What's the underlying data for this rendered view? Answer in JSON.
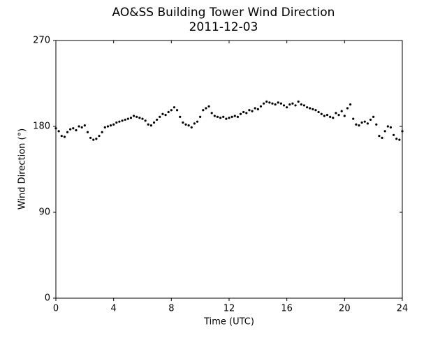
{
  "chart_data": {
    "type": "scatter",
    "title": "AO&SS Building Tower Wind Direction",
    "subtitle": "2011-12-03",
    "x_label": "Time (UTC)",
    "y_label": "Wind Direction (°)",
    "color": "#000000",
    "xlim": [
      0,
      24
    ],
    "xticks": [
      0,
      4,
      8,
      12,
      16,
      20,
      24
    ],
    "ylim": [
      0,
      270
    ],
    "yticks": [
      0,
      90,
      180,
      270
    ],
    "x": [
      0,
      0.2,
      0.4,
      0.6,
      0.8,
      1,
      1.2,
      1.4,
      1.6,
      1.8,
      2,
      2.2,
      2.4,
      2.6,
      2.8,
      3,
      3.2,
      3.4,
      3.6,
      3.8,
      4,
      4.2,
      4.4,
      4.6,
      4.8,
      5,
      5.2,
      5.4,
      5.6,
      5.8,
      6,
      6.2,
      6.4,
      6.6,
      6.8,
      7,
      7.2,
      7.4,
      7.6,
      7.8,
      8,
      8.2,
      8.4,
      8.6,
      8.8,
      9,
      9.2,
      9.4,
      9.6,
      9.8,
      10,
      10.2,
      10.4,
      10.6,
      10.8,
      11,
      11.2,
      11.4,
      11.6,
      11.8,
      12,
      12.2,
      12.4,
      12.6,
      12.8,
      13,
      13.2,
      13.4,
      13.6,
      13.8,
      14,
      14.2,
      14.4,
      14.6,
      14.8,
      15,
      15.2,
      15.4,
      15.6,
      15.8,
      16,
      16.2,
      16.4,
      16.6,
      16.8,
      17,
      17.2,
      17.4,
      17.6,
      17.8,
      18,
      18.2,
      18.4,
      18.6,
      18.8,
      19,
      19.2,
      19.4,
      19.6,
      19.8,
      20,
      20.2,
      20.4,
      20.6,
      20.8,
      21,
      21.2,
      21.4,
      21.6,
      21.8,
      22,
      22.2,
      22.4,
      22.6,
      22.8,
      23,
      23.2,
      23.4,
      23.6,
      23.8,
      24
    ],
    "values": [
      178,
      175,
      170,
      169,
      174,
      177,
      178,
      176,
      180,
      179,
      181,
      174,
      168,
      166,
      167,
      170,
      174,
      179,
      180,
      181,
      182,
      184,
      185,
      186,
      187,
      188,
      189,
      191,
      190,
      189,
      188,
      186,
      182,
      181,
      184,
      187,
      190,
      193,
      192,
      195,
      197,
      200,
      197,
      190,
      184,
      182,
      181,
      179,
      183,
      185,
      190,
      197,
      199,
      201,
      194,
      191,
      190,
      189,
      190,
      188,
      189,
      190,
      191,
      190,
      193,
      195,
      194,
      197,
      196,
      199,
      198,
      201,
      204,
      206,
      205,
      204,
      203,
      205,
      204,
      202,
      200,
      203,
      204,
      202,
      206,
      203,
      202,
      200,
      199,
      198,
      197,
      195,
      193,
      191,
      192,
      190,
      189,
      194,
      192,
      196,
      191,
      199,
      203,
      188,
      182,
      181,
      184,
      185,
      183,
      187,
      190,
      182,
      170,
      168,
      175,
      180,
      179,
      171,
      167,
      166,
      175
    ]
  }
}
